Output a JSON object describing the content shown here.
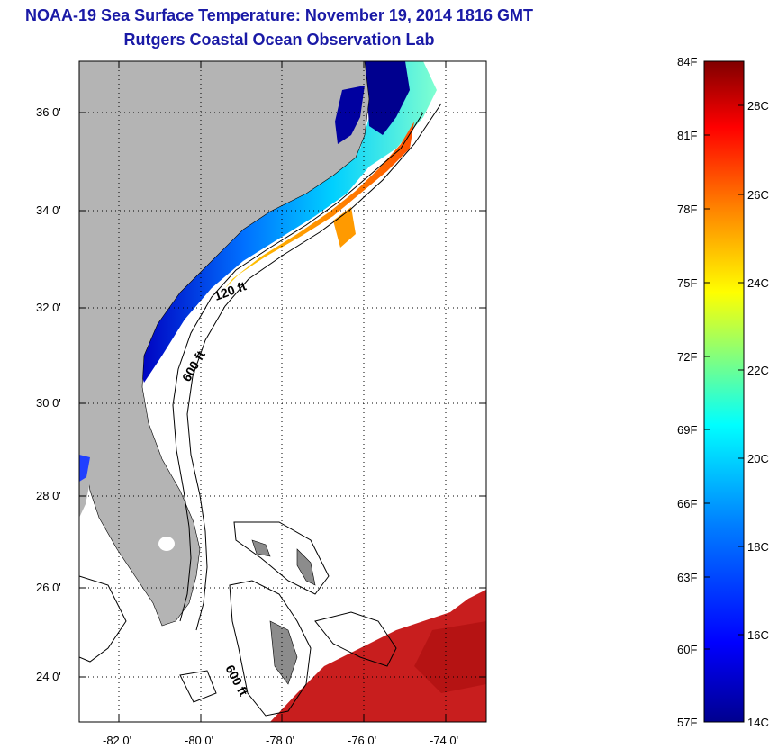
{
  "title": "NOAA-19 Sea Surface Temperature:  November 19, 2014 1816 GMT",
  "subtitle": "Rutgers Coastal Ocean Observation Lab",
  "map": {
    "lat_ticks": [
      "36 0'",
      "34 0'",
      "32 0'",
      "30 0'",
      "28 0'",
      "26 0'",
      "24 0'"
    ],
    "lon_ticks": [
      "-82 0'",
      "-80 0'",
      "-78 0'",
      "-76 0'",
      "-74 0'"
    ],
    "contour_labels": [
      "120 ft",
      "600 ft",
      "600 ft"
    ],
    "land_color": "#b4b4b4",
    "ocean_color": "#ffffff"
  },
  "colorbar": {
    "fahrenheit_labels": [
      "84F",
      "81F",
      "78F",
      "75F",
      "72F",
      "69F",
      "66F",
      "63F",
      "60F",
      "57F"
    ],
    "celsius_labels": [
      "28C",
      "26C",
      "24C",
      "22C",
      "20C",
      "18C",
      "16C",
      "14C"
    ],
    "colors": [
      "#00008f",
      "#0000ff",
      "#0080ff",
      "#00ffff",
      "#80ff80",
      "#ffff00",
      "#ff8000",
      "#ff0000",
      "#800000"
    ]
  }
}
